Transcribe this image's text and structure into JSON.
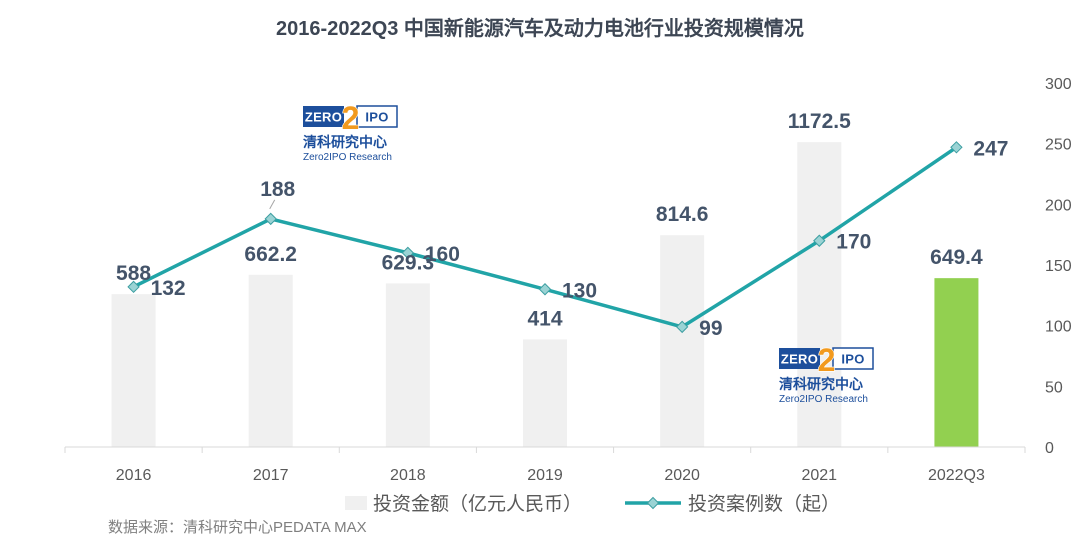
{
  "logo": {
    "left_text": "ZERO",
    "digit": "2",
    "right_text": "IPO",
    "cn_name": "清科研究中心",
    "en_name": "Zero2IPO Research"
  },
  "source": "数据来源：清科研究中心PEDATA MAX",
  "colors": {
    "logo_blue": "#1D4F9C",
    "logo_orange": "#F29A1E",
    "axis_line": "#D9D9D9"
  },
  "chart_data": {
    "type": "bar",
    "title": "2016-2022Q3 中国新能源汽车及动力电池行业投资规模情况",
    "categories": [
      "2016",
      "2017",
      "2018",
      "2019",
      "2020",
      "2021",
      "2022Q3"
    ],
    "series": [
      {
        "name": "投资金额（亿元人民币）",
        "type": "bar",
        "axis": "left",
        "values": [
          588,
          662.2,
          629.3,
          414,
          814.6,
          1172.5,
          649.4
        ],
        "colors": [
          "#F0F0F0",
          "#F0F0F0",
          "#F0F0F0",
          "#F0F0F0",
          "#F0F0F0",
          "#F0F0F0",
          "#92D050"
        ]
      },
      {
        "name": "投资案例数（起）",
        "type": "line",
        "axis": "right",
        "marker": "diamond",
        "color": "#21A4A7",
        "marker_fill": "#9AD3D4",
        "marker_stroke": "#3C9EA1",
        "values": [
          132,
          188,
          160,
          130,
          99,
          170,
          247
        ]
      }
    ],
    "ylim": [
      0,
      1400
    ],
    "left_axis_visible": false,
    "y2lim": [
      0,
      300
    ],
    "y2_ticks": [
      0,
      50,
      100,
      150,
      200,
      250,
      300
    ],
    "data_labels": true,
    "grid": false,
    "legend": "bottom"
  }
}
